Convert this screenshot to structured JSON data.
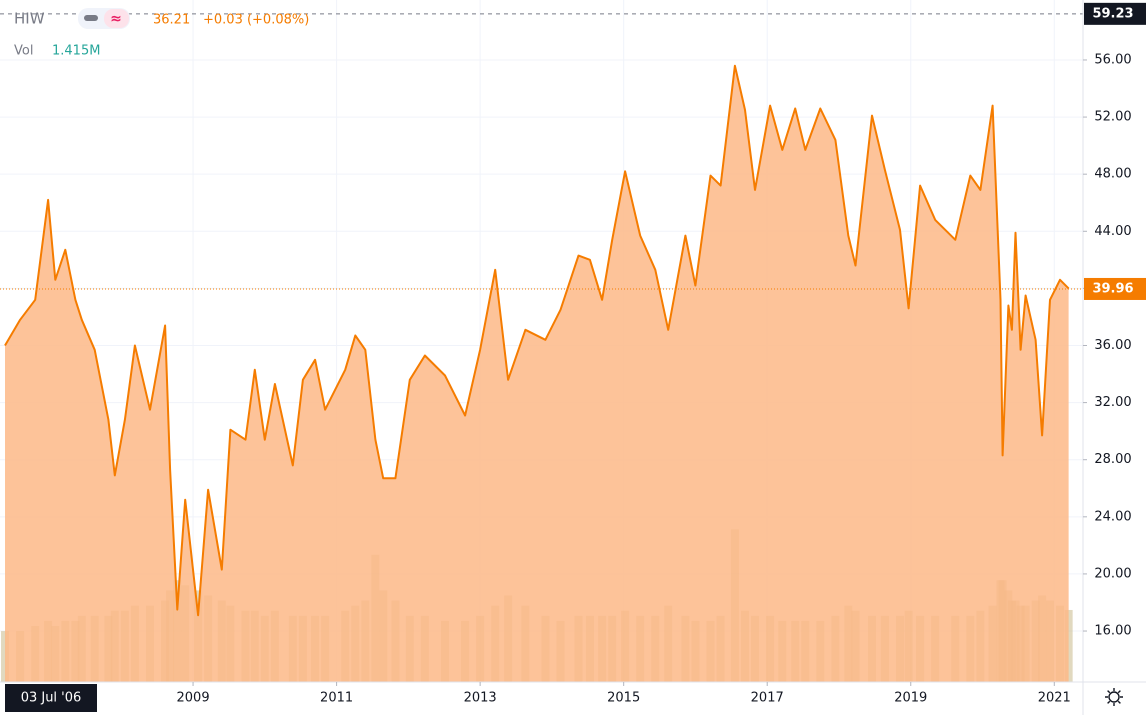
{
  "chart_data": {
    "type": "area",
    "title": "HIW",
    "close_text": "36.21",
    "change_text": "+0.03 (+0.08%)",
    "volume_text": "1.415M",
    "cursor_date_label": "03 Jul '06",
    "high_price": 59.23,
    "last_price": 39.96,
    "x": [
      2006.38,
      2006.59,
      2006.8,
      2006.98,
      2007.08,
      2007.22,
      2007.36,
      2007.45,
      2007.63,
      2007.82,
      2007.91,
      2008.05,
      2008.19,
      2008.4,
      2008.61,
      2008.68,
      2008.78,
      2008.89,
      2009.07,
      2009.21,
      2009.4,
      2009.52,
      2009.73,
      2009.86,
      2010.0,
      2010.14,
      2010.39,
      2010.53,
      2010.7,
      2010.84,
      2011.12,
      2011.26,
      2011.4,
      2011.54,
      2011.65,
      2011.82,
      2012.02,
      2012.23,
      2012.51,
      2012.79,
      2013.0,
      2013.21,
      2013.39,
      2013.63,
      2013.91,
      2014.12,
      2014.37,
      2014.53,
      2014.7,
      2014.84,
      2015.02,
      2015.23,
      2015.44,
      2015.62,
      2015.86,
      2016.0,
      2016.21,
      2016.35,
      2016.55,
      2016.69,
      2016.83,
      2017.04,
      2017.21,
      2017.39,
      2017.53,
      2017.74,
      2017.95,
      2018.13,
      2018.23,
      2018.46,
      2018.64,
      2018.85,
      2018.97,
      2019.13,
      2019.34,
      2019.62,
      2019.83,
      2019.97,
      2020.14,
      2020.25,
      2020.28,
      2020.36,
      2020.41,
      2020.46,
      2020.53,
      2020.6,
      2020.74,
      2020.83,
      2020.94,
      2021.08,
      2021.2
    ],
    "series": [
      {
        "name": "HIW",
        "color": "#f57c00",
        "fill": "#fdb987",
        "values": [
          36.0,
          37.8,
          39.2,
          46.2,
          40.6,
          42.7,
          39.2,
          37.8,
          35.7,
          30.8,
          26.9,
          30.8,
          36.0,
          31.5,
          37.4,
          27.3,
          17.5,
          25.2,
          17.1,
          25.9,
          20.3,
          30.1,
          29.4,
          34.3,
          29.4,
          33.3,
          27.6,
          33.6,
          35.0,
          31.5,
          34.3,
          36.7,
          35.7,
          29.4,
          26.7,
          26.7,
          33.6,
          35.3,
          33.9,
          31.1,
          35.7,
          41.3,
          33.6,
          37.1,
          36.4,
          38.5,
          42.3,
          42.0,
          39.2,
          43.4,
          48.2,
          43.7,
          41.3,
          37.1,
          43.7,
          40.2,
          47.9,
          47.2,
          55.6,
          52.5,
          46.9,
          52.8,
          49.7,
          52.6,
          49.7,
          52.6,
          50.4,
          43.7,
          41.6,
          52.1,
          48.3,
          44.1,
          38.6,
          47.2,
          44.8,
          43.4,
          47.9,
          46.9,
          52.8,
          39.2,
          28.3,
          38.8,
          37.1,
          43.9,
          35.7,
          39.5,
          36.4,
          29.7,
          39.2,
          40.6,
          40.0
        ]
      },
      {
        "name": "Vol",
        "color": "#c9b98a",
        "values": [
          1.0,
          1.0,
          1.1,
          1.2,
          1.1,
          1.2,
          1.2,
          1.3,
          1.3,
          1.3,
          1.4,
          1.4,
          1.5,
          1.5,
          1.6,
          1.8,
          2.0,
          1.9,
          1.8,
          1.7,
          1.6,
          1.5,
          1.4,
          1.4,
          1.3,
          1.4,
          1.3,
          1.3,
          1.3,
          1.3,
          1.4,
          1.5,
          1.6,
          2.5,
          1.8,
          1.6,
          1.3,
          1.3,
          1.2,
          1.2,
          1.3,
          1.5,
          1.7,
          1.5,
          1.3,
          1.2,
          1.3,
          1.3,
          1.3,
          1.3,
          1.4,
          1.3,
          1.3,
          1.5,
          1.3,
          1.2,
          1.2,
          1.3,
          3.0,
          1.4,
          1.3,
          1.3,
          1.2,
          1.2,
          1.2,
          1.2,
          1.3,
          1.5,
          1.4,
          1.3,
          1.3,
          1.3,
          1.4,
          1.3,
          1.3,
          1.3,
          1.3,
          1.4,
          1.5,
          2.0,
          2.0,
          1.8,
          1.6,
          1.6,
          1.5,
          1.5,
          1.6,
          1.7,
          1.6,
          1.5,
          1.415
        ]
      }
    ],
    "xlim": [
      2006.31,
      2021.4
    ],
    "xticks": [
      2009,
      2011,
      2013,
      2015,
      2017,
      2019,
      2021
    ],
    "ylim": [
      12.43,
      60.2
    ],
    "y2lim": [
      0,
      13.4
    ],
    "yticks": [
      {
        "value": 16,
        "label": "16.00"
      },
      {
        "value": 20,
        "label": "20.00"
      },
      {
        "value": 24,
        "label": "24.00"
      },
      {
        "value": 28,
        "label": "28.00"
      },
      {
        "value": 32,
        "label": "32.00"
      },
      {
        "value": 36,
        "label": "36.00"
      },
      {
        "value": 40,
        "label": "40.00"
      },
      {
        "value": 44,
        "label": "44.00"
      },
      {
        "value": 48,
        "label": "48.00"
      },
      {
        "value": 52,
        "label": "52.00"
      },
      {
        "value": 56,
        "label": "56.00"
      }
    ],
    "grid": true
  }
}
